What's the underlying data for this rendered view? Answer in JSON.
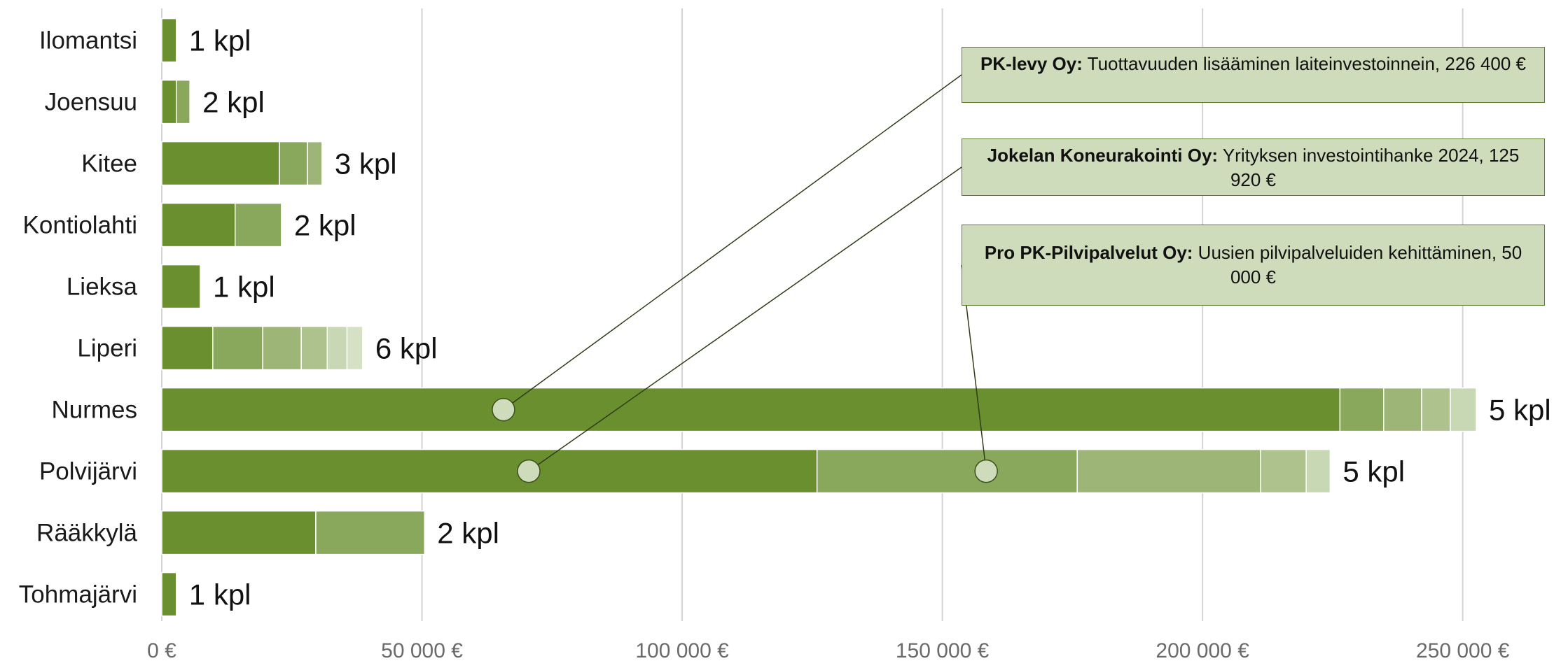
{
  "chart_data": {
    "type": "bar",
    "orientation": "horizontal",
    "stacked": true,
    "categories": [
      "Ilomantsi",
      "Joensuu",
      "Kitee",
      "Kontiolahti",
      "Lieksa",
      "Liperi",
      "Nurmes",
      "Polvijärvi",
      "Rääkkylä",
      "Tohmajärvi"
    ],
    "segments": [
      [
        2800
      ],
      [
        2800,
        2600
      ],
      [
        22600,
        5400,
        2800
      ],
      [
        14100,
        8900
      ],
      [
        7400
      ],
      [
        9800,
        9600,
        7400,
        5000,
        3800,
        3000
      ],
      [
        226400,
        8400,
        7300,
        5500,
        5000
      ],
      [
        125920,
        50000,
        35200,
        8800,
        4600
      ],
      [
        29600,
        20900
      ],
      [
        2800
      ]
    ],
    "count_labels": [
      "1 kpl",
      "2 kpl",
      "3 kpl",
      "2 kpl",
      "1 kpl",
      "6 kpl",
      "5 kpl",
      "5 kpl",
      "2 kpl",
      "1 kpl"
    ],
    "segment_colors": [
      "#6a8f2e",
      "#8aa85c",
      "#9db577",
      "#adc28c",
      "#c8d7b4",
      "#d5e1c4"
    ],
    "xlim": [
      0,
      260000
    ],
    "xticks": [
      0,
      50000,
      100000,
      150000,
      200000,
      250000
    ],
    "xtick_labels": [
      "0 €",
      "50 000 €",
      "100 000 €",
      "150 000 €",
      "200 000 €",
      "250 000 €"
    ],
    "grid": "vertical",
    "annotations": [
      {
        "bold": "PK-levy Oy:",
        "text": " Tuottavuuden lisääminen laiteinvestoinnein, 226 400 €",
        "category": "Nurmes",
        "segment": 0
      },
      {
        "bold": "Jokelan Koneurakointi Oy:",
        "text": " Yrityksen investointihanke 2024, 125 920 €",
        "category": "Polvijärvi",
        "segment": 0
      },
      {
        "bold": "Pro PK-Pilvipalvelut Oy:",
        "text": " Uusien pilvipalveluiden kehittäminen, 50 000 €",
        "category": "Polvijärvi",
        "segment": 1
      }
    ]
  }
}
